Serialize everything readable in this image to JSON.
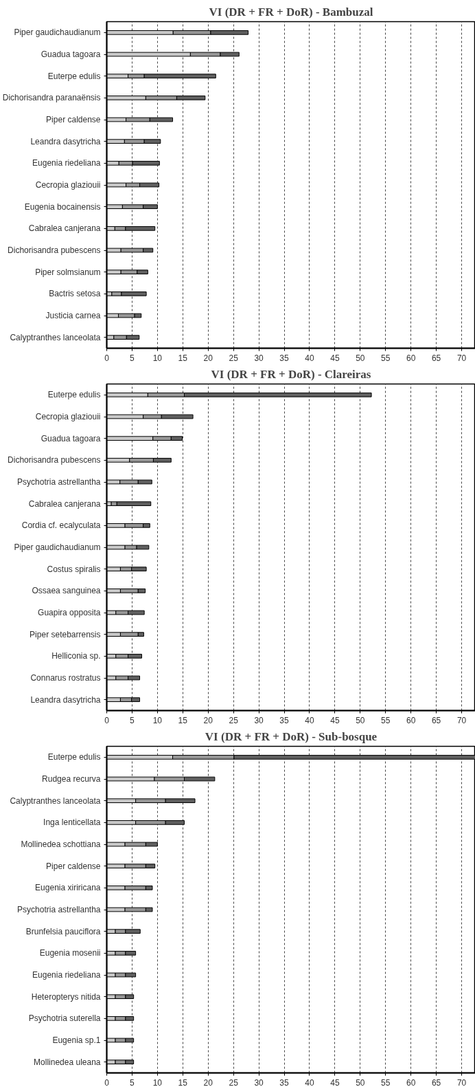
{
  "chart_data": [
    {
      "type": "bar",
      "orientation": "horizontal",
      "stacked": true,
      "title": "VI (DR + FR + DoR) - Bambuzal",
      "grid": "x",
      "xlim": [
        0,
        72.7
      ],
      "xticks": [
        0,
        5,
        10,
        15,
        20,
        25,
        30,
        35,
        40,
        45,
        50,
        55,
        60,
        65,
        70
      ],
      "categories": [
        "Piper gaudichaudianum",
        "Guadua tagoara",
        "Euterpe edulis",
        "Dichorisandra paranaënsis",
        "Piper caldense",
        "Leandra dasytricha",
        "Eugenia riedeliana",
        "Cecropia glaziouii",
        "Eugenia bocainensis",
        "Cabralea canjerana",
        "Dichorisandra pubescens",
        "Piper solmsianum",
        "Bactris setosa",
        "Justicia carnea",
        "Calyptranthes lanceolata"
      ],
      "series": [
        {
          "color": "#c8c8c8",
          "values": [
            13.1,
            16.5,
            4.2,
            7.7,
            3.8,
            3.5,
            2.4,
            3.8,
            3.1,
            1.6,
            2.8,
            2.8,
            1.0,
            2.3,
            1.4
          ]
        },
        {
          "color": "#969696",
          "values": [
            7.4,
            5.9,
            3.2,
            6.1,
            4.7,
            3.9,
            2.7,
            2.7,
            4.1,
            2.1,
            4.4,
            3.2,
            1.9,
            3.2,
            2.5
          ]
        },
        {
          "color": "#5f5f5f",
          "values": [
            7.4,
            3.7,
            14.1,
            5.6,
            4.5,
            3.2,
            5.3,
            3.8,
            2.8,
            5.8,
            1.9,
            2.1,
            4.9,
            1.3,
            2.5
          ]
        }
      ]
    },
    {
      "type": "bar",
      "orientation": "horizontal",
      "stacked": true,
      "title": "VI (DR + FR + DoR) - Clareiras",
      "grid": "x",
      "xlim": [
        0,
        72.7
      ],
      "xticks": [
        0,
        5,
        10,
        15,
        20,
        25,
        30,
        35,
        40,
        45,
        50,
        55,
        60,
        65,
        70
      ],
      "categories": [
        "Euterpe edulis",
        "Cecropia glaziouii",
        "Guadua tagoara",
        "Dichorisandra pubescens",
        "Psychotria astrellantha",
        "Cabralea canjerana",
        "Cordia cf. ecalyculata",
        "Piper gaudichaudianum",
        "Costus spiralis",
        "Ossaea sanguinea",
        "Guapira opposita",
        "Piper setebarrensis",
        "Helliconia sp.",
        "Connarus rostratus",
        "Leandra dasytricha"
      ],
      "series": [
        {
          "color": "#c8c8c8",
          "values": [
            8.1,
            7.2,
            9.1,
            4.5,
            2.6,
            0.9,
            3.6,
            3.6,
            2.7,
            2.7,
            1.8,
            2.7,
            1.8,
            1.8,
            2.7
          ]
        },
        {
          "color": "#969696",
          "values": [
            7.2,
            3.6,
            3.6,
            4.7,
            3.6,
            1.1,
            3.6,
            2.3,
            2.2,
            3.5,
            2.4,
            3.5,
            2.4,
            2.4,
            2.2
          ]
        },
        {
          "color": "#5f5f5f",
          "values": [
            36.9,
            6.2,
            2.2,
            3.5,
            2.7,
            6.7,
            1.3,
            2.4,
            2.9,
            1.4,
            3.2,
            1.1,
            2.7,
            2.3,
            1.6
          ]
        }
      ]
    },
    {
      "type": "bar",
      "orientation": "horizontal",
      "stacked": true,
      "title": "VI (DR + FR + DoR) - Sub-bosque",
      "grid": "x",
      "xlim": [
        0,
        72.7
      ],
      "xticks": [
        0,
        5,
        10,
        15,
        20,
        25,
        30,
        35,
        40,
        45,
        50,
        55,
        60,
        65,
        70
      ],
      "categories": [
        "Euterpe edulis",
        "Rudgea recurva",
        "Calyptranthes lanceolata",
        "Inga lenticellata",
        "Mollinedea schottiana",
        "Piper caldense",
        "Eugenia xiriricana",
        "Psychotria astrellantha",
        "Brunfelsia pauciflora",
        "Eugenia mosenii",
        "Eugenia riedeliana",
        "Heteropterys nitida",
        "Psychotria suterella",
        "Eugenia sp.1",
        "Mollinedea uleana"
      ],
      "series": [
        {
          "color": "#c8c8c8",
          "values": [
            13.0,
            9.4,
            5.7,
            5.7,
            3.6,
            3.6,
            3.6,
            3.6,
            1.7,
            1.7,
            1.7,
            1.7,
            1.7,
            1.7,
            1.7
          ]
        },
        {
          "color": "#969696",
          "values": [
            12.1,
            5.9,
            5.9,
            5.9,
            4.1,
            4.1,
            4.1,
            4.1,
            2.0,
            2.0,
            2.0,
            2.0,
            2.0,
            2.0,
            2.0
          ]
        },
        {
          "color": "#5f5f5f",
          "values": [
            47.6,
            6.0,
            5.8,
            3.7,
            2.3,
            1.8,
            1.3,
            1.3,
            2.9,
            2.0,
            2.0,
            1.6,
            1.6,
            1.6,
            1.6
          ]
        }
      ]
    }
  ]
}
